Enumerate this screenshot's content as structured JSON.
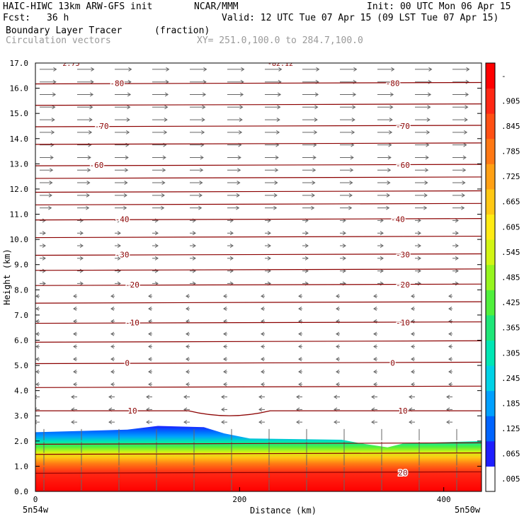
{
  "header": {
    "model": "HAIC-HIWC 13km ARW-GFS init",
    "org": "NCAR/MMM",
    "init": "Init: 00 UTC Mon 06 Apr 15",
    "fcst_label": "Fcst:",
    "fcst_value": "36 h",
    "valid": "Valid: 12 UTC Tue 07 Apr 15 (09 LST Tue 07 Apr 15)",
    "field": "Boundary Layer Tracer",
    "units": "(fraction)",
    "vectors": "Circulation vectors",
    "xy": "XY= 251.0,100.0 to 284.7,100.0"
  },
  "colors": {
    "contour": "#8b0000",
    "vector": "#666666"
  },
  "chart_data": {
    "type": "heatmap",
    "xlabel": "Distance (km)",
    "ylabel": "Height (km)",
    "xlim": [
      0,
      437
    ],
    "ylim": [
      0,
      17
    ],
    "x_ticks": [
      0,
      200,
      400
    ],
    "y_ticks": [
      "0.0",
      "1.0",
      "2.0",
      "3.0",
      "4.0",
      "5.0",
      "6.0",
      "7.0",
      "8.0",
      "9.0",
      "10.0",
      "11.0",
      "12.0",
      "13.0",
      "14.0",
      "15.0",
      "16.0",
      "17.0"
    ],
    "x_end_labels": [
      "5n54w",
      "5n50w"
    ],
    "fill_top_km": [
      {
        "x": 0,
        "h": 2.35
      },
      {
        "x": 90,
        "h": 2.45
      },
      {
        "x": 120,
        "h": 2.6
      },
      {
        "x": 165,
        "h": 2.55
      },
      {
        "x": 185,
        "h": 2.3
      },
      {
        "x": 210,
        "h": 2.1
      },
      {
        "x": 300,
        "h": 2.05
      },
      {
        "x": 320,
        "h": 1.9
      },
      {
        "x": 345,
        "h": 1.75
      },
      {
        "x": 360,
        "h": 1.9
      },
      {
        "x": 437,
        "h": 2.0
      }
    ],
    "colorbar": {
      "labels": [
        ".005",
        ".065",
        ".125",
        ".185",
        ".245",
        ".305",
        ".365",
        ".425",
        ".485",
        ".545",
        ".605",
        ".665",
        ".725",
        ".785",
        ".845",
        ".905",
        "-"
      ],
      "colors": [
        "#ffffff",
        "#1e1eff",
        "#0064ff",
        "#00a0ff",
        "#00d2e6",
        "#00e6b4",
        "#1ee678",
        "#50f03c",
        "#96f51e",
        "#d2f514",
        "#ffeb14",
        "#ffc814",
        "#ffa014",
        "#ff7814",
        "#ff5014",
        "#ff2814",
        "#ff0000"
      ]
    },
    "contours": [
      {
        "h": 16.2,
        "label": "-80",
        "lx": [
          80,
          350
        ]
      },
      {
        "h": 15.35,
        "label": "",
        "lx": []
      },
      {
        "h": 14.5,
        "label": "-70",
        "lx": [
          65,
          360
        ]
      },
      {
        "h": 13.8,
        "label": "",
        "lx": []
      },
      {
        "h": 12.95,
        "label": "-60",
        "lx": [
          60,
          360
        ]
      },
      {
        "h": 12.45,
        "label": "",
        "lx": []
      },
      {
        "h": 11.9,
        "label": "",
        "lx": []
      },
      {
        "h": 11.4,
        "label": "",
        "lx": []
      },
      {
        "h": 10.8,
        "label": "-40",
        "lx": [
          85,
          355
        ]
      },
      {
        "h": 10.1,
        "label": "",
        "lx": []
      },
      {
        "h": 9.4,
        "label": "-30",
        "lx": [
          85,
          360
        ]
      },
      {
        "h": 8.8,
        "label": "",
        "lx": []
      },
      {
        "h": 8.2,
        "label": "-20",
        "lx": [
          95,
          360
        ]
      },
      {
        "h": 7.5,
        "label": "",
        "lx": []
      },
      {
        "h": 6.7,
        "label": "-10",
        "lx": [
          95,
          360
        ]
      },
      {
        "h": 5.95,
        "label": "",
        "lx": []
      },
      {
        "h": 5.1,
        "label": "0",
        "lx": [
          90,
          350
        ]
      },
      {
        "h": 4.15,
        "label": "",
        "lx": []
      },
      {
        "h": 3.2,
        "label": "10",
        "lx": [
          95,
          360
        ]
      },
      {
        "h": 1.9,
        "label": "",
        "lx": []
      },
      {
        "h": 1.5,
        "label": "",
        "lx": []
      },
      {
        "h": 0.75,
        "label": "20",
        "lx": [
          360
        ]
      }
    ],
    "top_labels": [
      "2.75",
      "-82.12"
    ]
  }
}
